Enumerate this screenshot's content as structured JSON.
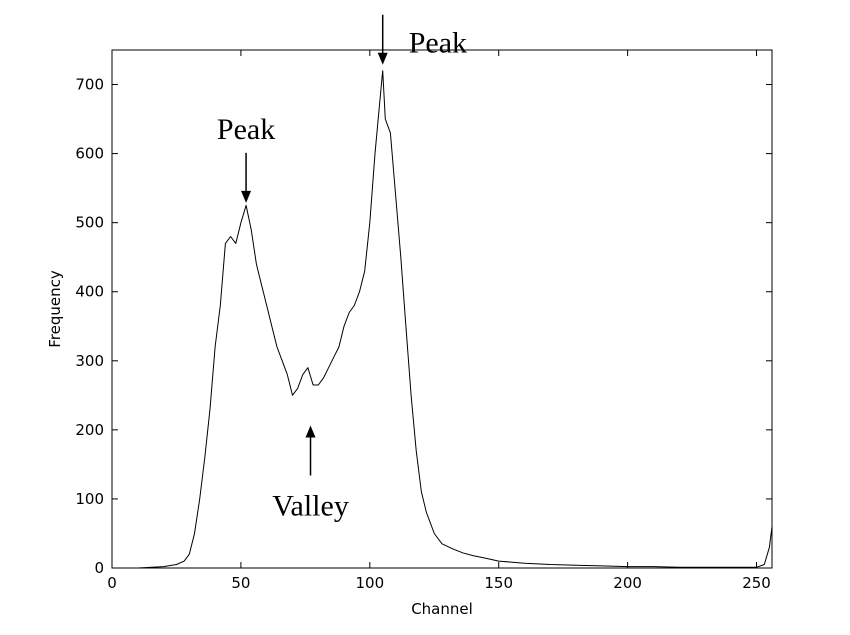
{
  "chart_data": {
    "type": "line",
    "xlabel": "Channel",
    "ylabel": "Frequency",
    "xlim": [
      0,
      256
    ],
    "ylim": [
      0,
      750
    ],
    "xticks": [
      0,
      50,
      100,
      150,
      200,
      250
    ],
    "yticks": [
      0,
      100,
      200,
      300,
      400,
      500,
      600,
      700
    ],
    "grid": false,
    "series": [
      {
        "x": [
          10,
          20,
          25,
          28,
          30,
          32,
          34,
          36,
          38,
          40,
          42,
          44,
          46,
          48,
          50,
          52,
          54,
          56,
          58,
          60,
          62,
          64,
          66,
          68,
          70,
          72,
          74,
          76,
          78,
          80,
          82,
          84,
          86,
          88,
          90,
          92,
          94,
          96,
          98,
          100,
          102,
          104,
          105,
          106,
          108,
          110,
          112,
          114,
          116,
          118,
          120,
          122,
          125,
          128,
          132,
          136,
          140,
          145,
          150,
          160,
          170,
          180,
          190,
          200,
          210,
          220,
          230,
          240,
          250,
          253,
          255,
          256
        ],
        "y": [
          0,
          2,
          5,
          10,
          20,
          50,
          100,
          160,
          230,
          320,
          380,
          470,
          480,
          470,
          500,
          525,
          490,
          440,
          410,
          380,
          350,
          320,
          300,
          280,
          250,
          260,
          280,
          290,
          265,
          265,
          275,
          290,
          305,
          320,
          350,
          370,
          380,
          400,
          430,
          500,
          600,
          680,
          720,
          650,
          630,
          540,
          450,
          350,
          250,
          170,
          110,
          80,
          50,
          35,
          28,
          22,
          18,
          14,
          10,
          7,
          5,
          4,
          3,
          2,
          2,
          1,
          1,
          1,
          1,
          5,
          30,
          60
        ]
      }
    ],
    "annotations": [
      {
        "text": "Peak",
        "x": 52,
        "y": 520,
        "direction": "down"
      },
      {
        "text": "Peak",
        "x": 105,
        "y": 720,
        "direction": "down"
      },
      {
        "text": "Valley",
        "x": 77,
        "y": 215,
        "direction": "up"
      }
    ]
  }
}
